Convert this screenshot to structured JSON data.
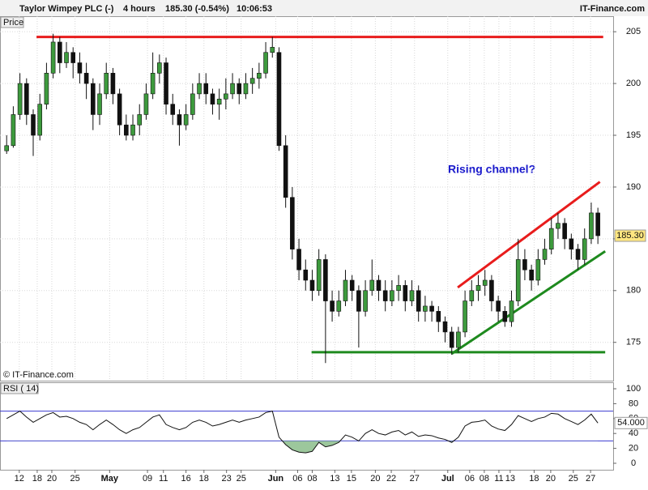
{
  "header": {
    "instrument": "Taylor Wimpey PLC (-)",
    "period": "4 hours",
    "quote": "185.30 (-0.54%)",
    "time": "10:06:53",
    "source": "IT-Finance.com"
  },
  "chart_data": [
    {
      "type": "candlestick",
      "panel_label": "Price",
      "copyright": "© IT-Finance.com",
      "annotation": "Rising channel?",
      "last_value": 185.3,
      "last_label": "185.30",
      "up_color": "#3d9a3d",
      "down_color": "#111111",
      "xlim": [
        -1,
        91.3
      ],
      "ylim": [
        171.3,
        206.5
      ],
      "yticks": [
        175,
        180,
        185,
        190,
        195,
        200,
        205
      ],
      "xticks": [
        {
          "value": 1.9,
          "label": "12"
        },
        {
          "value": 4.6,
          "label": "18"
        },
        {
          "value": 6.8,
          "label": "20"
        },
        {
          "value": 10.3,
          "label": "25"
        },
        {
          "value": 15.5,
          "label": "May"
        },
        {
          "value": 21.2,
          "label": "09"
        },
        {
          "value": 23.6,
          "label": "11"
        },
        {
          "value": 27,
          "label": "16"
        },
        {
          "value": 29.7,
          "label": "18"
        },
        {
          "value": 33.1,
          "label": "23"
        },
        {
          "value": 35.3,
          "label": "25"
        },
        {
          "value": 40.5,
          "label": "Jun"
        },
        {
          "value": 43.8,
          "label": "06"
        },
        {
          "value": 46,
          "label": "08"
        },
        {
          "value": 49.4,
          "label": "13"
        },
        {
          "value": 51.9,
          "label": "15"
        },
        {
          "value": 55.5,
          "label": "20"
        },
        {
          "value": 57.9,
          "label": "22"
        },
        {
          "value": 61.4,
          "label": "27"
        },
        {
          "value": 66.4,
          "label": "Jul"
        },
        {
          "value": 69.7,
          "label": "06"
        },
        {
          "value": 71.9,
          "label": "08"
        },
        {
          "value": 74.1,
          "label": "11"
        },
        {
          "value": 75.8,
          "label": "13"
        },
        {
          "value": 79.4,
          "label": "18"
        },
        {
          "value": 81.9,
          "label": "20"
        },
        {
          "value": 85.3,
          "label": "25"
        },
        {
          "value": 87.9,
          "label": "27"
        }
      ],
      "grid": true,
      "open": [
        193.5,
        194,
        197,
        200,
        197,
        195,
        198,
        201,
        204,
        202,
        203,
        202,
        201,
        200,
        197,
        199,
        201,
        199,
        196,
        195,
        196,
        197,
        199,
        201,
        202,
        198,
        197,
        196,
        197,
        199,
        200,
        199,
        198,
        198.5,
        199,
        200,
        199,
        200,
        200.5,
        201,
        203,
        203,
        194,
        189,
        184,
        182,
        181,
        180,
        183,
        179,
        178,
        179,
        181,
        180,
        178,
        180,
        181,
        180,
        179,
        180,
        180.5,
        179,
        180,
        178,
        178.5,
        178,
        177,
        176,
        174.5,
        176,
        179,
        180,
        180.5,
        181,
        179,
        178,
        177,
        179,
        183,
        182,
        181,
        183,
        184,
        186,
        186.5,
        185,
        184,
        183,
        185,
        187.5
      ],
      "high": [
        195,
        197.8,
        201,
        200.5,
        197.5,
        199,
        202,
        204.8,
        204.5,
        204,
        203.5,
        203,
        202,
        200.5,
        200,
        202,
        201.5,
        199.5,
        197,
        197,
        198,
        200,
        203,
        202.8,
        202.5,
        199,
        197.5,
        198,
        200,
        201,
        201,
        199.5,
        199.5,
        200.5,
        201,
        200.5,
        201,
        201.5,
        202,
        204,
        204.5,
        203.5,
        195,
        190,
        185,
        183,
        182,
        184,
        183.5,
        180,
        180,
        182,
        181.5,
        180.5,
        181,
        183,
        181.5,
        181,
        181,
        181.5,
        181,
        181,
        180.5,
        179.5,
        179,
        178.5,
        177.5,
        176.5,
        176.5,
        180,
        181,
        181.5,
        182,
        181.5,
        179.5,
        178.5,
        180,
        185,
        184,
        182.5,
        184,
        185,
        187,
        187.5,
        187,
        185.5,
        184.5,
        186,
        188.5,
        188
      ],
      "low": [
        193.2,
        193.8,
        196.5,
        196,
        193,
        194.5,
        197.5,
        200.5,
        201,
        201.5,
        200.5,
        200,
        198.5,
        195.5,
        196,
        198.5,
        198,
        195,
        194.5,
        194.5,
        195,
        196.5,
        198.5,
        200,
        197,
        196,
        194,
        195.5,
        196.5,
        198.5,
        198,
        197,
        196.5,
        197.5,
        198.5,
        198,
        198.5,
        199,
        199.5,
        200.5,
        202.5,
        193.5,
        188,
        183,
        181,
        180,
        179,
        179.5,
        173,
        177,
        177.5,
        178.5,
        179,
        174.5,
        177.5,
        179.5,
        179,
        178,
        178.5,
        179,
        178,
        178.5,
        177,
        177,
        177,
        176,
        175,
        173.8,
        174,
        175.5,
        178.5,
        179,
        179.5,
        178,
        177,
        176.5,
        176.5,
        178.5,
        181,
        180,
        180.5,
        182.5,
        183.5,
        185,
        184,
        183,
        182,
        182.5,
        184.5,
        184.5
      ],
      "close": [
        194,
        197,
        200,
        197,
        195,
        198,
        201,
        204,
        202,
        203,
        202,
        201,
        200,
        197,
        199,
        201,
        199,
        196,
        195,
        196,
        197,
        199,
        201,
        202,
        198,
        197,
        196,
        197,
        199,
        200,
        199,
        198,
        198.5,
        199,
        200,
        199,
        200,
        200.5,
        201,
        203,
        203.5,
        194,
        189,
        184,
        182,
        181,
        180,
        183,
        179,
        178,
        179,
        181,
        180,
        178,
        180,
        181,
        180,
        179,
        180,
        180.5,
        179,
        180,
        178,
        178.5,
        178,
        177,
        176,
        174.5,
        176,
        179,
        180,
        180.5,
        181,
        179,
        178,
        177,
        179,
        183,
        182,
        181,
        183,
        184,
        186,
        186.5,
        185,
        184,
        183,
        185,
        187.5,
        185.3
      ],
      "trend_lines": [
        {
          "color": "#e81c1c",
          "points": [
            [
              4.5,
              204.5
            ],
            [
              89.8,
              204.5
            ]
          ]
        },
        {
          "color": "#e81c1c",
          "points": [
            [
              67.9,
              180.3
            ],
            [
              89.3,
              190.5
            ]
          ]
        },
        {
          "color": "#1e8a1e",
          "points": [
            [
              67,
              173.9
            ],
            [
              90.1,
              183.8
            ]
          ]
        },
        {
          "color": "#1e8a1e",
          "points": [
            [
              45.9,
              174.05
            ],
            [
              90.1,
              174.05
            ]
          ]
        }
      ]
    },
    {
      "type": "line",
      "panel_label": "RSI ( 14)",
      "color": "#111111",
      "fill_color": "#9cc79c",
      "xlim": [
        -1,
        91.3
      ],
      "ylim": [
        -8.7,
        108.7
      ],
      "yticks": [
        0,
        20,
        40,
        60,
        80,
        100
      ],
      "levels": [
        30,
        70
      ],
      "level_color": "#3a3ad0",
      "last_value": 54,
      "last_label": "54.000",
      "values": [
        60,
        65,
        70,
        62,
        55,
        60,
        65,
        68,
        62,
        63,
        60,
        55,
        52,
        45,
        52,
        58,
        52,
        45,
        40,
        45,
        48,
        55,
        62,
        65,
        52,
        48,
        45,
        48,
        55,
        58,
        55,
        50,
        52,
        55,
        58,
        55,
        58,
        60,
        62,
        68,
        70,
        35,
        25,
        18,
        15,
        14,
        16,
        28,
        22,
        24,
        28,
        38,
        35,
        30,
        40,
        45,
        40,
        38,
        42,
        44,
        38,
        42,
        36,
        38,
        37,
        34,
        32,
        28,
        35,
        50,
        55,
        56,
        58,
        50,
        46,
        44,
        52,
        64,
        60,
        56,
        60,
        62,
        67,
        66,
        60,
        56,
        52,
        58,
        66,
        54
      ]
    }
  ]
}
